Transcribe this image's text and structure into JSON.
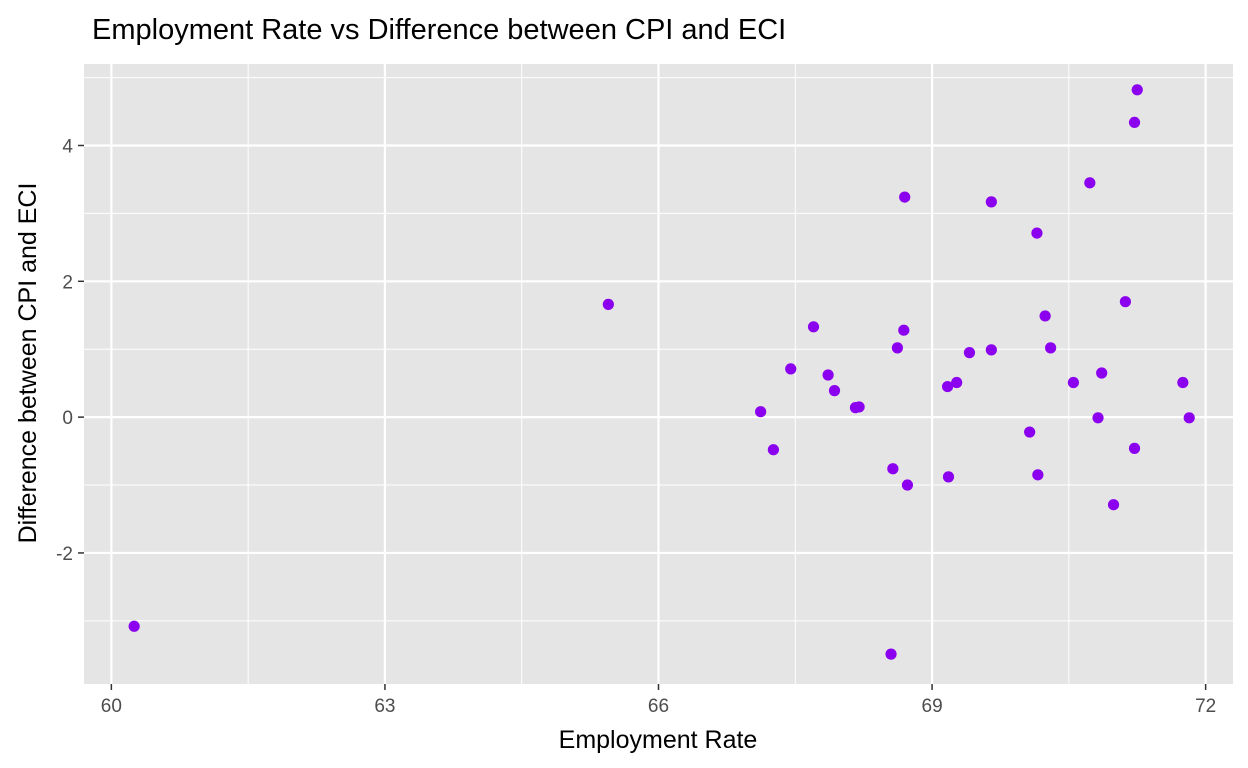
{
  "chart_data": {
    "type": "scatter",
    "title": "Employment Rate vs Difference between CPI and ECI",
    "xlabel": "Employment Rate",
    "ylabel": "Difference between CPI and ECI",
    "xlim": [
      59.7,
      72.3
    ],
    "ylim": [
      -3.93,
      5.2
    ],
    "x_ticks": [
      60,
      63,
      66,
      69,
      72
    ],
    "x_tick_labels": [
      "60",
      "63",
      "66",
      "69",
      "72"
    ],
    "x_minor_ticks": [
      61.5,
      64.5,
      67.5,
      70.5
    ],
    "y_ticks": [
      -2,
      0,
      2,
      4
    ],
    "y_tick_labels": [
      "-2",
      "0",
      "2",
      "4"
    ],
    "y_minor_ticks": [
      -3,
      -1,
      1,
      3,
      5
    ],
    "grid": true,
    "point_color": "#8B00EE",
    "panel_color": "#E5E5E5",
    "points": [
      {
        "x": 60.25,
        "y": -3.08
      },
      {
        "x": 65.45,
        "y": 1.66
      },
      {
        "x": 67.12,
        "y": 0.08
      },
      {
        "x": 67.26,
        "y": -0.48
      },
      {
        "x": 67.45,
        "y": 0.71
      },
      {
        "x": 67.7,
        "y": 1.33
      },
      {
        "x": 67.86,
        "y": 0.62
      },
      {
        "x": 67.93,
        "y": 0.39
      },
      {
        "x": 68.16,
        "y": 0.14
      },
      {
        "x": 68.2,
        "y": 0.15
      },
      {
        "x": 68.57,
        "y": -0.76
      },
      {
        "x": 68.62,
        "y": 1.02
      },
      {
        "x": 68.69,
        "y": 1.28
      },
      {
        "x": 68.7,
        "y": 3.24
      },
      {
        "x": 68.73,
        "y": -1.0
      },
      {
        "x": 68.55,
        "y": -3.49
      },
      {
        "x": 69.17,
        "y": 0.45
      },
      {
        "x": 69.18,
        "y": -0.88
      },
      {
        "x": 69.27,
        "y": 0.51
      },
      {
        "x": 69.41,
        "y": 0.95
      },
      {
        "x": 69.65,
        "y": 0.99
      },
      {
        "x": 69.65,
        "y": 3.17
      },
      {
        "x": 70.07,
        "y": -0.22
      },
      {
        "x": 70.15,
        "y": 2.71
      },
      {
        "x": 70.16,
        "y": -0.85
      },
      {
        "x": 70.24,
        "y": 1.49
      },
      {
        "x": 70.3,
        "y": 1.02
      },
      {
        "x": 70.55,
        "y": 0.51
      },
      {
        "x": 70.73,
        "y": 3.45
      },
      {
        "x": 70.82,
        "y": -0.01
      },
      {
        "x": 70.86,
        "y": 0.65
      },
      {
        "x": 70.99,
        "y": -1.29
      },
      {
        "x": 71.12,
        "y": 1.7
      },
      {
        "x": 71.22,
        "y": -0.46
      },
      {
        "x": 71.22,
        "y": 4.34
      },
      {
        "x": 71.25,
        "y": 4.82
      },
      {
        "x": 71.75,
        "y": 0.51
      },
      {
        "x": 71.82,
        "y": -0.01
      }
    ]
  }
}
